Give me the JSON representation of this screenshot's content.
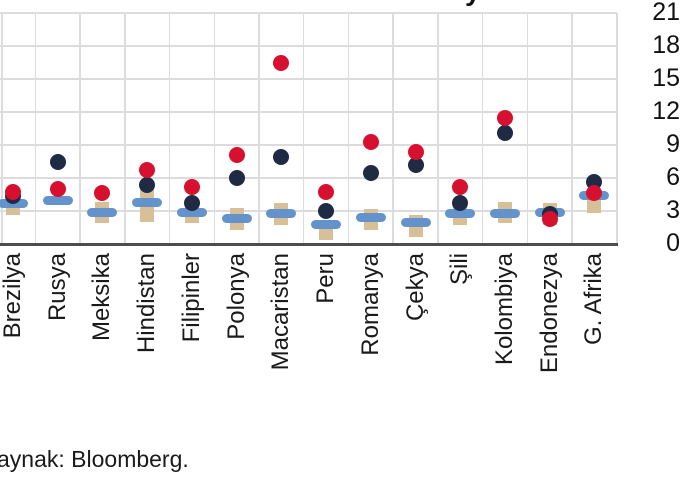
{
  "title_fragment": "y",
  "source_note": "aynak: Bloomberg.",
  "chart_data": {
    "type": "scatter",
    "title": "(cropped out of view)",
    "categories": [
      "Brezilya",
      "Rusya",
      "Meksika",
      "Hindistan",
      "Filipinler",
      "Polonya",
      "Macaristan",
      "Peru",
      "Romanya",
      "Çekya",
      "Şili",
      "Kolombiya",
      "Endonezya",
      "G. Afrika"
    ],
    "series": [
      {
        "name": "tan-range-bar",
        "marker": "vertical-range-bar",
        "color": "#d7c098",
        "ranges": [
          [
            2.6,
            4.3
          ],
          null,
          [
            1.9,
            3.8
          ],
          [
            2.0,
            4.9
          ],
          [
            1.9,
            3.6
          ],
          [
            1.3,
            3.3
          ],
          [
            1.7,
            3.7
          ],
          [
            0.4,
            1.9
          ],
          [
            1.3,
            3.2
          ],
          [
            0.6,
            2.6
          ],
          [
            1.7,
            3.7
          ],
          [
            1.9,
            3.8
          ],
          [
            1.7,
            3.7
          ],
          [
            2.8,
            4.2
          ]
        ]
      },
      {
        "name": "blue-dash",
        "marker": "horizontal-dash",
        "color": "#6493cc",
        "values": [
          3.7,
          4.0,
          2.9,
          3.8,
          2.9,
          2.3,
          2.8,
          1.8,
          2.4,
          2.0,
          2.8,
          2.8,
          2.9,
          4.4
        ]
      },
      {
        "name": "navy-dot",
        "marker": "circle",
        "color": "#1f2a44",
        "values": [
          4.4,
          7.5,
          null,
          5.4,
          3.7,
          6.0,
          7.9,
          3.0,
          6.5,
          7.2,
          3.7,
          10.1,
          2.7,
          5.6
        ]
      },
      {
        "name": "red-dot",
        "marker": "circle",
        "color": "#d8102f",
        "values": [
          4.7,
          5.0,
          4.6,
          6.7,
          5.2,
          8.1,
          16.5,
          4.7,
          9.3,
          8.4,
          5.2,
          11.5,
          2.3,
          4.6
        ]
      }
    ],
    "ylim": [
      0,
      21
    ],
    "yticks": [
      "0",
      "3",
      "6",
      "9",
      "12",
      "15",
      "18",
      "21"
    ],
    "yaxis_side": "right",
    "grid": true,
    "legend": "cropped out of view",
    "colors": {
      "gridline": "#dcdcdc",
      "axis": "#4d4d4d",
      "text": "#1a1a1a"
    }
  }
}
